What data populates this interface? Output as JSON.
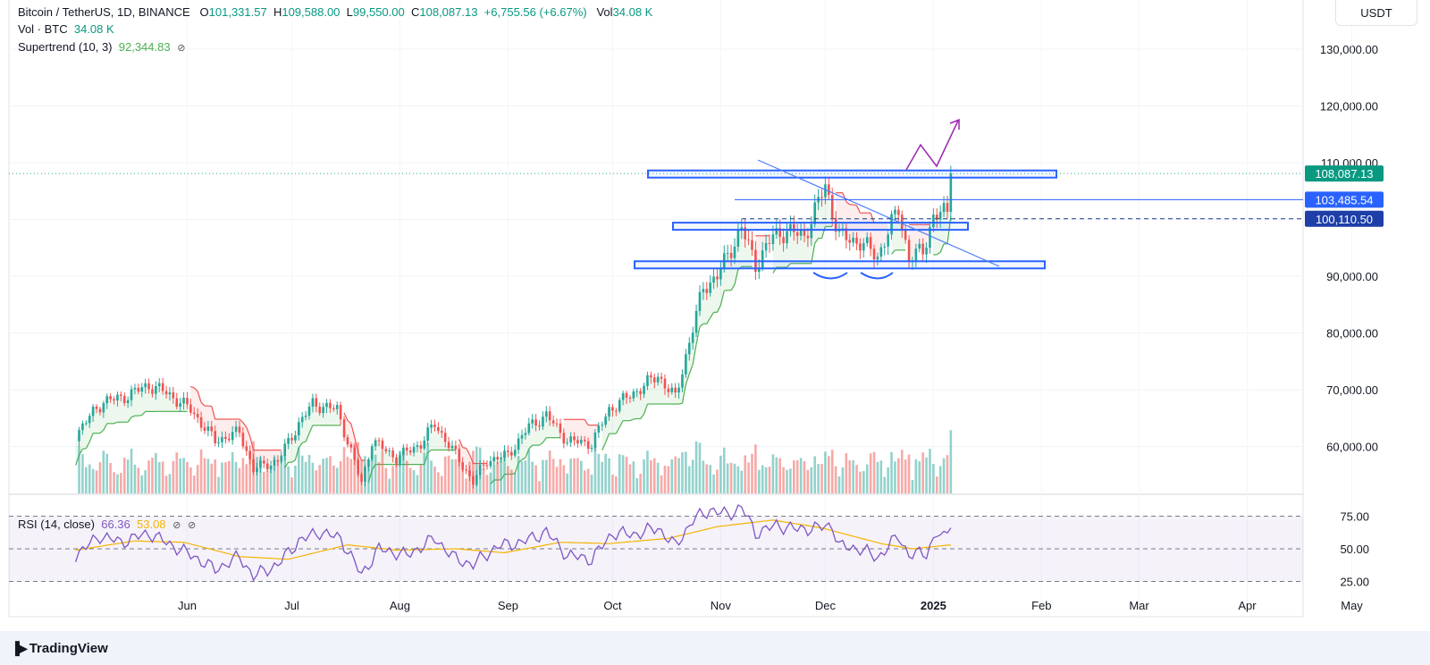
{
  "header": {
    "symbol": "Bitcoin / TetherUS, 1D, BINANCE",
    "open_label": "O",
    "open": "101,331.57",
    "high_label": "H",
    "high": "109,588.00",
    "low_label": "L",
    "low": "99,550.00",
    "close_label": "C",
    "close": "108,087.13",
    "change": "+6,755.56 (+6.67%)",
    "vol_label": "Vol",
    "vol": "34.08 K",
    "vol_btc_label": "Vol · BTC",
    "vol_btc": "34.08 K",
    "supertrend_label": "Supertrend (10, 3)",
    "supertrend": "92,344.83",
    "rsi_label": "RSI (14, close)",
    "rsi": "66.36",
    "rsi_ma": "53.08"
  },
  "currency_button": "USDT",
  "branding": "TradingView",
  "colors": {
    "up": "#26a69a",
    "down": "#ef5350",
    "accent": "#2962ff",
    "rsi": "#7e57c2",
    "rsi_ma": "#f5b400",
    "supertrend_up": "#4caf50",
    "supertrend_down": "#ef5350"
  },
  "chart_data": [
    {
      "type": "candlestick",
      "title": "Bitcoin / TetherUS, 1D, BINANCE",
      "x_ticks": [
        "Jun",
        "Jul",
        "Aug",
        "Sep",
        "Oct",
        "Nov",
        "Dec",
        "2025",
        "Feb",
        "Mar",
        "Apr",
        "May"
      ],
      "y_ticks": [
        "60,000.00",
        "70,000.00",
        "80,000.00",
        "90,000.00",
        "100,000.00",
        "110,000.00",
        "120,000.00",
        "130,000.00"
      ],
      "ylim": [
        52000,
        136000
      ],
      "close_series": [
        [
          "2024-05-15",
          62000
        ],
        [
          "2024-05-20",
          66000
        ],
        [
          "2024-05-23",
          68000
        ],
        [
          "2024-05-28",
          68500
        ],
        [
          "2024-06-05",
          70800
        ],
        [
          "2024-06-10",
          69500
        ],
        [
          "2024-06-17",
          66500
        ],
        [
          "2024-06-24",
          61000
        ],
        [
          "2024-07-01",
          62500
        ],
        [
          "2024-07-05",
          56000
        ],
        [
          "2024-07-12",
          57500
        ],
        [
          "2024-07-18",
          64000
        ],
        [
          "2024-07-22",
          67500
        ],
        [
          "2024-07-29",
          66500
        ],
        [
          "2024-08-05",
          53500
        ],
        [
          "2024-08-08",
          61000
        ],
        [
          "2024-08-15",
          58000
        ],
        [
          "2024-08-22",
          60500
        ],
        [
          "2024-08-26",
          64000
        ],
        [
          "2024-09-01",
          58500
        ],
        [
          "2024-09-06",
          53800
        ],
        [
          "2024-09-10",
          57500
        ],
        [
          "2024-09-16",
          58500
        ],
        [
          "2024-09-22",
          63500
        ],
        [
          "2024-09-27",
          65500
        ],
        [
          "2024-10-03",
          61000
        ],
        [
          "2024-10-10",
          60500
        ],
        [
          "2024-10-15",
          66500
        ],
        [
          "2024-10-21",
          69000
        ],
        [
          "2024-10-29",
          72500
        ],
        [
          "2024-11-03",
          68500
        ],
        [
          "2024-11-06",
          76000
        ],
        [
          "2024-11-11",
          88000
        ],
        [
          "2024-11-15",
          90000
        ],
        [
          "2024-11-22",
          98500
        ],
        [
          "2024-11-26",
          92000
        ],
        [
          "2024-12-01",
          97000
        ],
        [
          "2024-12-05",
          98000
        ],
        [
          "2024-12-10",
          97000
        ],
        [
          "2024-12-16",
          106000
        ],
        [
          "2024-12-20",
          97000
        ],
        [
          "2024-12-26",
          96000
        ],
        [
          "2024-12-31",
          93500
        ],
        [
          "2025-01-06",
          102000
        ],
        [
          "2025-01-09",
          93000
        ],
        [
          "2025-01-13",
          94500
        ],
        [
          "2025-01-16",
          100500
        ],
        [
          "2025-01-20",
          101300
        ],
        [
          "2025-01-21",
          108087
        ]
      ],
      "volume_label": "Vol · BTC",
      "volume_value": "34.08 K",
      "supertrend": {
        "label": "Supertrend (10, 3)",
        "value": "92,344.83"
      },
      "price_labels": [
        "108,087.13",
        "103,485.54",
        "100,110.50"
      ],
      "annotations": [
        "resistance box ~108,000",
        "range box ~99,000",
        "support box ~92,000",
        "descending trendline",
        "double bottom arcs",
        "projected breakout arrow"
      ]
    },
    {
      "type": "line",
      "title": "RSI (14, close)",
      "y_ticks": [
        "25.00",
        "50.00",
        "75.00"
      ],
      "ylim": [
        20,
        80
      ],
      "series": [
        {
          "name": "RSI",
          "value": "66.36",
          "values": [
            [
              "2024-05-15",
              45
            ],
            [
              "2024-05-22",
              60
            ],
            [
              "2024-05-28",
              55
            ],
            [
              "2024-06-05",
              62
            ],
            [
              "2024-06-12",
              52
            ],
            [
              "2024-06-18",
              44
            ],
            [
              "2024-06-24",
              34
            ],
            [
              "2024-07-01",
              44
            ],
            [
              "2024-07-05",
              29
            ],
            [
              "2024-07-12",
              38
            ],
            [
              "2024-07-18",
              56
            ],
            [
              "2024-07-24",
              63
            ],
            [
              "2024-07-30",
              58
            ],
            [
              "2024-08-05",
              30
            ],
            [
              "2024-08-10",
              50
            ],
            [
              "2024-08-18",
              45
            ],
            [
              "2024-08-26",
              58
            ],
            [
              "2024-09-01",
              42
            ],
            [
              "2024-09-06",
              38
            ],
            [
              "2024-09-13",
              52
            ],
            [
              "2024-09-20",
              55
            ],
            [
              "2024-09-27",
              63
            ],
            [
              "2024-10-03",
              45
            ],
            [
              "2024-10-10",
              42
            ],
            [
              "2024-10-16",
              62
            ],
            [
              "2024-10-22",
              61
            ],
            [
              "2024-10-29",
              66
            ],
            [
              "2024-11-03",
              52
            ],
            [
              "2024-11-08",
              72
            ],
            [
              "2024-11-13",
              80
            ],
            [
              "2024-11-18",
              76
            ],
            [
              "2024-11-22",
              82
            ],
            [
              "2024-11-26",
              62
            ],
            [
              "2024-12-02",
              68
            ],
            [
              "2024-12-08",
              65
            ],
            [
              "2024-12-14",
              66
            ],
            [
              "2024-12-18",
              68
            ],
            [
              "2024-12-20",
              52
            ],
            [
              "2024-12-26",
              50
            ],
            [
              "2024-12-31",
              43
            ],
            [
              "2025-01-06",
              60
            ],
            [
              "2025-01-09",
              45
            ],
            [
              "2025-01-14",
              47
            ],
            [
              "2025-01-17",
              62
            ],
            [
              "2025-01-19",
              58
            ],
            [
              "2025-01-21",
              66
            ]
          ]
        },
        {
          "name": "RSI MA",
          "value": "53.08",
          "values": [
            [
              "2024-05-15",
              49
            ],
            [
              "2024-06-01",
              56
            ],
            [
              "2024-06-15",
              55
            ],
            [
              "2024-07-01",
              44
            ],
            [
              "2024-07-15",
              42
            ],
            [
              "2024-08-01",
              53
            ],
            [
              "2024-08-15",
              49
            ],
            [
              "2024-09-01",
              50
            ],
            [
              "2024-09-15",
              47
            ],
            [
              "2024-10-01",
              55
            ],
            [
              "2024-10-15",
              54
            ],
            [
              "2024-11-01",
              58
            ],
            [
              "2024-11-15",
              67
            ],
            [
              "2024-12-01",
              72
            ],
            [
              "2024-12-15",
              66
            ],
            [
              "2025-01-01",
              54
            ],
            [
              "2025-01-10",
              50
            ],
            [
              "2025-01-21",
              53
            ]
          ]
        }
      ]
    }
  ]
}
